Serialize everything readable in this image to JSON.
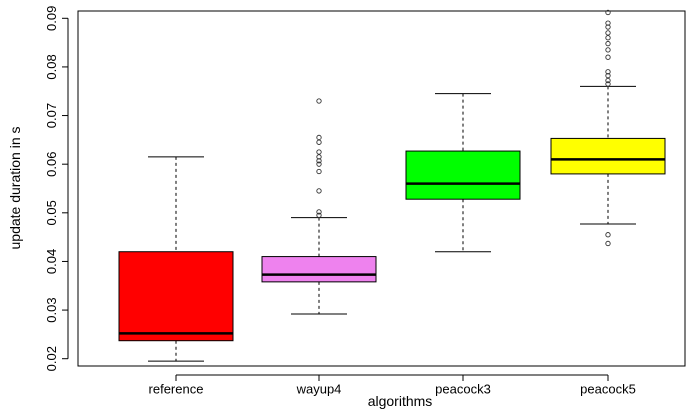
{
  "chart_data": {
    "type": "boxplot",
    "xlabel": "algorithms",
    "ylabel": "update duration in s",
    "ylim": [
      0.0185,
      0.0915
    ],
    "yticks": [
      0.02,
      0.03,
      0.04,
      0.05,
      0.06,
      0.07,
      0.08,
      0.09
    ],
    "ytick_labels": [
      "0.02",
      "0.03",
      "0.04",
      "0.05",
      "0.06",
      "0.07",
      "0.08",
      "0.09"
    ],
    "grid": false,
    "series": [
      {
        "name": "reference",
        "color": "#ff0000",
        "whisker_low": 0.0195,
        "q1": 0.0237,
        "median": 0.0252,
        "q3": 0.042,
        "whisker_high": 0.0615,
        "outliers": []
      },
      {
        "name": "wayup4",
        "color": "#ee82ee",
        "whisker_low": 0.0292,
        "q1": 0.0358,
        "median": 0.0373,
        "q3": 0.041,
        "whisker_high": 0.049,
        "outliers": [
          0.0495,
          0.0502,
          0.0545,
          0.0585,
          0.06,
          0.0607,
          0.0615,
          0.0625,
          0.0645,
          0.0655,
          0.073
        ]
      },
      {
        "name": "peacock3",
        "color": "#00ff00",
        "whisker_low": 0.042,
        "q1": 0.0528,
        "median": 0.056,
        "q3": 0.0627,
        "whisker_high": 0.0745,
        "outliers": []
      },
      {
        "name": "peacock5",
        "color": "#ffff00",
        "whisker_low": 0.0477,
        "q1": 0.058,
        "median": 0.061,
        "q3": 0.0653,
        "whisker_high": 0.076,
        "outliers": [
          0.0437,
          0.0455,
          0.0765,
          0.0772,
          0.0782,
          0.079,
          0.082,
          0.0835,
          0.0848,
          0.086,
          0.087,
          0.0882,
          0.089,
          0.0912
        ]
      }
    ]
  }
}
